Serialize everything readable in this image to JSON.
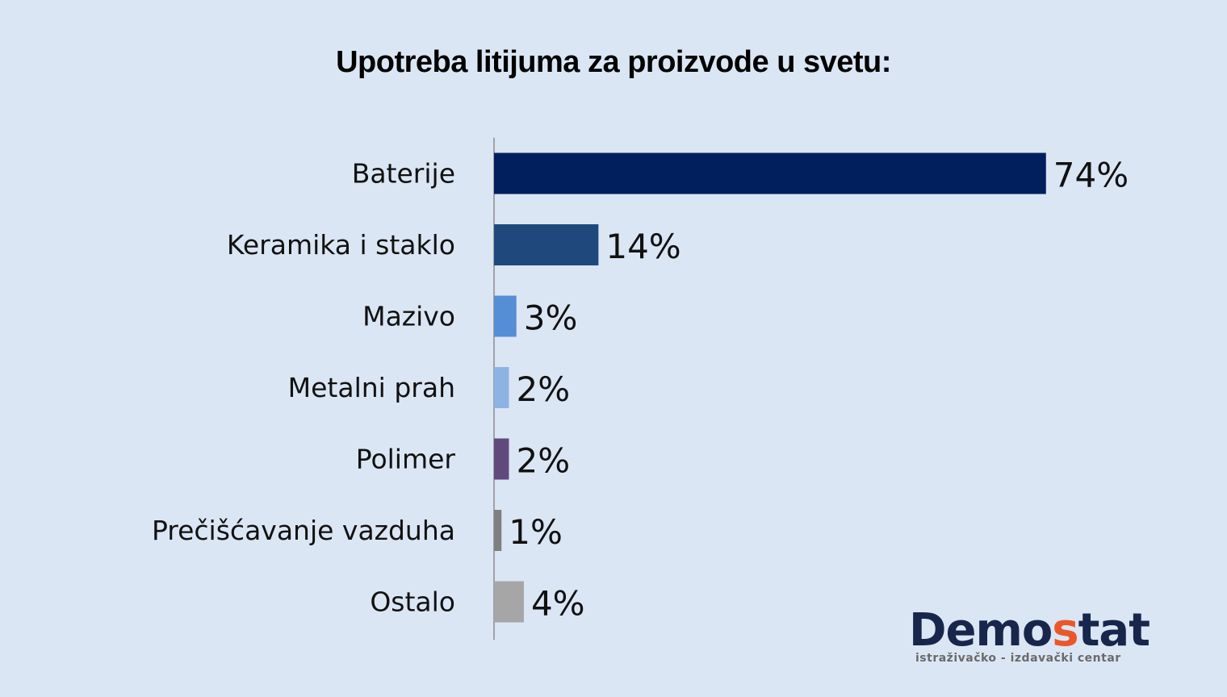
{
  "chart_data": {
    "type": "bar",
    "orientation": "horizontal",
    "title": "Upotreba litijuma za proizvode u svetu:",
    "categories": [
      "Baterije",
      "Keramika i staklo",
      "Mazivo",
      "Metalni prah",
      "Polimer",
      "Prečišćavanje vazduha",
      "Ostalo"
    ],
    "values": [
      74,
      14,
      3,
      2,
      2,
      1,
      4
    ],
    "value_labels": [
      "74%",
      "14%",
      "3%",
      "2%",
      "2%",
      "1%",
      "4%"
    ],
    "colors": [
      "#001f5c",
      "#1f497d",
      "#558ed5",
      "#8db3e2",
      "#604a7b",
      "#7f7f7f",
      "#a6a6a6"
    ],
    "xlabel": "",
    "ylabel": "",
    "grid": false,
    "legend": "none"
  },
  "logo": {
    "text_main": "Demo",
    "text_accent": "s",
    "text_end": "tat",
    "tagline": "istraživačko - izdavački  centar",
    "color_main": "#17264a",
    "color_accent": "#e8582b"
  }
}
